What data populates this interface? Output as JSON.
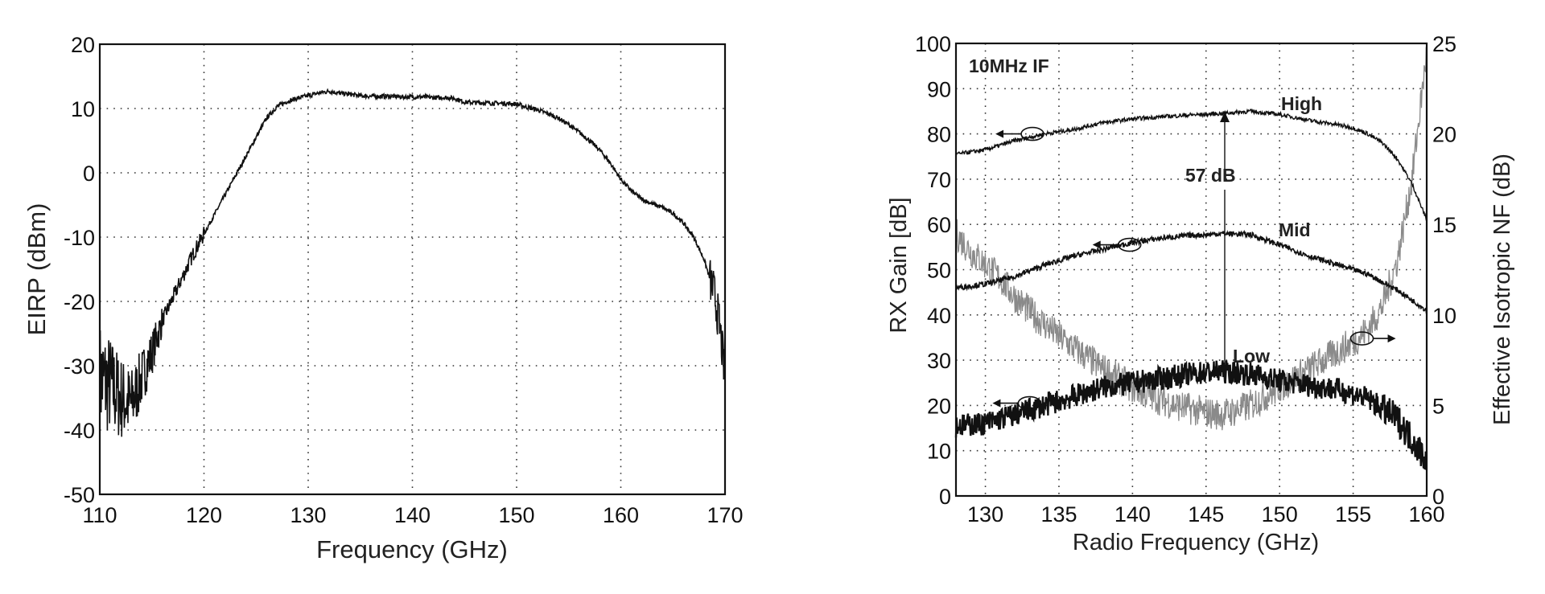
{
  "chart_data": [
    {
      "type": "line",
      "title": "",
      "xlabel": "Frequency (GHz)",
      "ylabel": "EIRP (dBm)",
      "xlim": [
        110,
        170
      ],
      "ylim": [
        -50,
        20
      ],
      "xticks": [
        110,
        120,
        130,
        140,
        150,
        160,
        170
      ],
      "yticks": [
        -50,
        -40,
        -30,
        -20,
        -10,
        0,
        10,
        20
      ],
      "grid": true,
      "legend": null,
      "series": [
        {
          "name": "EIRP",
          "color": "#111111",
          "x": [
            110,
            111,
            112,
            113,
            114,
            115,
            116,
            117,
            118,
            119,
            120,
            121,
            122,
            123,
            124,
            125,
            126,
            127,
            128,
            129,
            130,
            131,
            132,
            133,
            134,
            135,
            136,
            137,
            138,
            139,
            140,
            141,
            142,
            143,
            144,
            145,
            146,
            147,
            148,
            149,
            150,
            151,
            152,
            153,
            154,
            155,
            156,
            157,
            158,
            159,
            160,
            161,
            162,
            163,
            164,
            165,
            166,
            167,
            168,
            169,
            169.5,
            170
          ],
          "y": [
            -32,
            -33,
            -35,
            -36,
            -32,
            -28,
            -23,
            -19.5,
            -16,
            -12.5,
            -9.5,
            -6.5,
            -3.5,
            -0.5,
            2.5,
            5.5,
            8.5,
            10.3,
            11.1,
            11.6,
            12.0,
            12.4,
            12.7,
            12.4,
            12.2,
            12.0,
            11.9,
            11.9,
            11.9,
            11.8,
            11.8,
            11.8,
            11.7,
            11.7,
            11.6,
            11.0,
            10.9,
            10.9,
            10.8,
            10.8,
            10.7,
            10.2,
            9.8,
            9.2,
            8.5,
            7.5,
            6.3,
            5.0,
            3.5,
            1.5,
            -1.0,
            -2.8,
            -4.1,
            -4.8,
            -5.4,
            -6.3,
            -7.8,
            -10.0,
            -13.5,
            -19.0,
            -24.0,
            -32.0
          ]
        }
      ]
    },
    {
      "type": "line",
      "title": "",
      "xlabel": "Radio Frequency (GHz)",
      "ylabel": "RX Gain [dB]",
      "ylabel_right": "Effective Isotropic NF (dB)",
      "xlim": [
        128,
        160
      ],
      "ylim": [
        0,
        100
      ],
      "ylim_right": [
        0,
        25
      ],
      "xticks": [
        130,
        135,
        140,
        145,
        150,
        155,
        160
      ],
      "yticks": [
        0,
        10,
        20,
        30,
        40,
        50,
        60,
        70,
        80,
        90,
        100
      ],
      "yticks_right": [
        0,
        5,
        10,
        15,
        20,
        25
      ],
      "grid": true,
      "annotations": [
        {
          "text": "10MHz IF",
          "x": 130,
          "y": 94
        },
        {
          "text": "High",
          "x": 149.5,
          "y": 87
        },
        {
          "text": "Mid",
          "x": 149.5,
          "y": 59
        },
        {
          "text": "Low",
          "x": 146.5,
          "y": 30
        },
        {
          "text": "57 dB",
          "x": 145,
          "y": 71,
          "note": "double arrow from Low (~27 dB) to High (~84 dB) at 145 GHz"
        }
      ],
      "series": [
        {
          "name": "High",
          "axis": "left",
          "color": "#111111",
          "x": [
            128,
            130,
            132,
            134,
            136,
            138,
            140,
            142,
            144,
            145,
            146,
            148,
            150,
            152,
            154,
            155,
            156,
            157,
            158,
            159,
            160
          ],
          "y": [
            75.5,
            76.5,
            78.5,
            80.0,
            81.0,
            82.5,
            83.3,
            83.8,
            84.2,
            84.3,
            84.5,
            85.0,
            84.3,
            83.0,
            82.0,
            81.3,
            80.0,
            78.0,
            74.5,
            69.0,
            61.0
          ]
        },
        {
          "name": "Mid",
          "axis": "left",
          "color": "#111111",
          "x": [
            128,
            130,
            132,
            134,
            136,
            138,
            140,
            142,
            144,
            145,
            146,
            148,
            150,
            152,
            154,
            156,
            158,
            160
          ],
          "y": [
            46.0,
            46.8,
            48.5,
            51.0,
            53.0,
            54.5,
            56.0,
            57.0,
            57.6,
            57.7,
            58.0,
            57.8,
            55.5,
            53.0,
            51.0,
            49.0,
            45.5,
            41.0
          ]
        },
        {
          "name": "Low",
          "axis": "left",
          "color": "#111111",
          "x": [
            128,
            130,
            132,
            134,
            136,
            138,
            140,
            142,
            144,
            145,
            146,
            148,
            150,
            152,
            154,
            156,
            158,
            160
          ],
          "y": [
            15.5,
            16.0,
            18.0,
            20.0,
            22.0,
            24.0,
            25.0,
            26.0,
            27.0,
            27.3,
            27.5,
            27.0,
            25.5,
            24.5,
            23.5,
            21.5,
            17.0,
            8.0
          ]
        },
        {
          "name": "Effective Isotropic NF",
          "axis": "right",
          "color": "#8a8a8a",
          "x": [
            128,
            129,
            130,
            131,
            132,
            133,
            134,
            135,
            136,
            137,
            138,
            139,
            140,
            141,
            142,
            143,
            144,
            145,
            146,
            147,
            148,
            149,
            150,
            151,
            152,
            153,
            154,
            155,
            156,
            157,
            158,
            159,
            159.5,
            160
          ],
          "y": [
            14.5,
            13.5,
            12.8,
            12.0,
            11.0,
            10.2,
            9.5,
            8.8,
            8.2,
            7.6,
            7.0,
            6.5,
            6.0,
            5.6,
            5.3,
            5.0,
            4.8,
            4.6,
            4.5,
            4.7,
            5.0,
            5.5,
            6.0,
            6.5,
            7.0,
            7.5,
            8.0,
            8.5,
            9.2,
            10.5,
            13.0,
            17.5,
            21.0,
            24.5
          ]
        }
      ],
      "markers": [
        {
          "type": "ellipse-arrow",
          "series": "High",
          "x": 133.2,
          "y": 80,
          "direction": "left"
        },
        {
          "type": "ellipse-arrow",
          "series": "Mid",
          "x": 139.8,
          "y": 55.5,
          "direction": "left"
        },
        {
          "type": "ellipse-arrow",
          "series": "Low",
          "x": 133,
          "y": 20.5,
          "direction": "left"
        },
        {
          "type": "ellipse-arrow",
          "series": "Effective Isotropic NF",
          "x": 155.6,
          "y": 34.8,
          "direction": "right"
        }
      ]
    }
  ],
  "left_chart": {
    "xlabel": "Frequency (GHz)",
    "ylabel": "EIRP (dBm)",
    "xticks": [
      "110",
      "120",
      "130",
      "140",
      "150",
      "160",
      "170"
    ],
    "yticks": [
      "20",
      "10",
      "0",
      "-10",
      "-20",
      "-30",
      "-40",
      "-50"
    ]
  },
  "right_chart": {
    "xlabel": "Radio Frequency (GHz)",
    "ylabel": "RX Gain [dB]",
    "ylabel_right": "Effective Isotropic NF (dB)",
    "xticks": [
      "130",
      "135",
      "140",
      "145",
      "150",
      "155",
      "160"
    ],
    "yticks": [
      "100",
      "90",
      "80",
      "70",
      "60",
      "50",
      "40",
      "30",
      "20",
      "10",
      "0"
    ],
    "yticks_right": [
      "25",
      "20",
      "15",
      "10",
      "5",
      "0"
    ],
    "label_if": "10MHz IF",
    "label_high": "High",
    "label_mid": "Mid",
    "label_low": "Low",
    "label_57db": "57 dB"
  }
}
